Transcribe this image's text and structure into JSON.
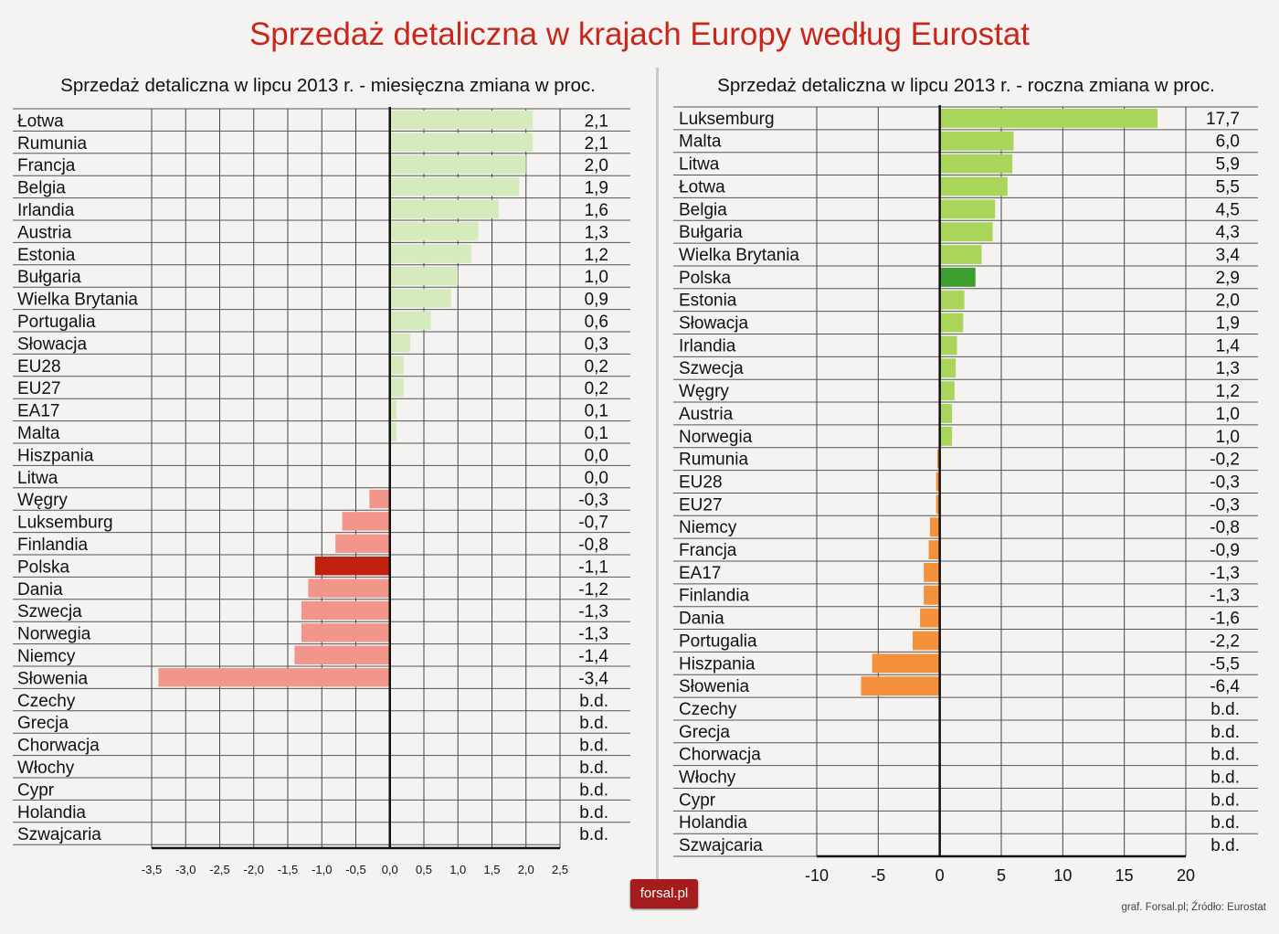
{
  "title": "Sprzedaż detaliczna w krajach Europy według Eurostat",
  "source": "graf. Forsal.pl; Źródło: Eurostat",
  "logo_text": "forsal.pl",
  "colors": {
    "title": "#c8261a",
    "highlight_label": "#e87722",
    "left_positive": "#d6ebbd",
    "left_negative": "#f2958a",
    "left_highlight": "#c1200f",
    "right_positive": "#a8d55a",
    "right_negative": "#f4913c",
    "right_highlight": "#3b9e2e"
  },
  "chart_data": [
    {
      "type": "bar",
      "orientation": "horizontal",
      "title": "Sprzedaż detaliczna w lipcu 2013 r. - miesięczna zmiana w proc.",
      "xlim": [
        -3.5,
        2.5
      ],
      "xticks": [
        "-3,5",
        "-3,0",
        "-2,5",
        "-2,0",
        "-1,5",
        "-1,0",
        "-0,5",
        "0,0",
        "0,5",
        "1,0",
        "1,5",
        "2,0",
        "2,5"
      ],
      "highlight": "Polska",
      "categories": [
        "Łotwa",
        "Rumunia",
        "Francja",
        "Belgia",
        "Irlandia",
        "Austria",
        "Estonia",
        "Bułgaria",
        "Wielka Brytania",
        "Portugalia",
        "Słowacja",
        "EU28",
        "EU27",
        "EA17",
        "Malta",
        "Hiszpania",
        "Litwa",
        "Węgry",
        "Luksemburg",
        "Finlandia",
        "Polska",
        "Dania",
        "Szwecja",
        "Norwegia",
        "Niemcy",
        "Słowenia",
        "Czechy",
        "Grecja",
        "Chorwacja",
        "Włochy",
        "Cypr",
        "Holandia",
        "Szwajcaria"
      ],
      "values": [
        2.1,
        2.1,
        2.0,
        1.9,
        1.6,
        1.3,
        1.2,
        1.0,
        0.9,
        0.6,
        0.3,
        0.2,
        0.2,
        0.1,
        0.1,
        0.0,
        0.0,
        -0.3,
        -0.7,
        -0.8,
        -1.1,
        -1.2,
        -1.3,
        -1.3,
        -1.4,
        -3.4,
        null,
        null,
        null,
        null,
        null,
        null,
        null
      ],
      "labels": [
        "2,1",
        "2,1",
        "2,0",
        "1,9",
        "1,6",
        "1,3",
        "1,2",
        "1,0",
        "0,9",
        "0,6",
        "0,3",
        "0,2",
        "0,2",
        "0,1",
        "0,1",
        "0,0",
        "0,0",
        "-0,3",
        "-0,7",
        "-0,8",
        "-1,1",
        "-1,2",
        "-1,3",
        "-1,3",
        "-1,4",
        "-3,4",
        "b.d.",
        "b.d.",
        "b.d.",
        "b.d.",
        "b.d.",
        "b.d.",
        "b.d."
      ]
    },
    {
      "type": "bar",
      "orientation": "horizontal",
      "title": "Sprzedaż detaliczna w lipcu 2013 r. - roczna zmiana w proc.",
      "xlim": [
        -10,
        20
      ],
      "xticks": [
        "-10",
        "-5",
        "0",
        "5",
        "10",
        "15",
        "20"
      ],
      "highlight": "Polska",
      "categories": [
        "Luksemburg",
        "Malta",
        "Litwa",
        "Łotwa",
        "Belgia",
        "Bułgaria",
        "Wielka Brytania",
        "Polska",
        "Estonia",
        "Słowacja",
        "Irlandia",
        "Szwecja",
        "Węgry",
        "Austria",
        "Norwegia",
        "Rumunia",
        "EU28",
        "EU27",
        "Niemcy",
        "Francja",
        "EA17",
        "Finlandia",
        "Dania",
        "Portugalia",
        "Hiszpania",
        "Słowenia",
        "Czechy",
        "Grecja",
        "Chorwacja",
        "Włochy",
        "Cypr",
        "Holandia",
        "Szwajcaria"
      ],
      "values": [
        17.7,
        6.0,
        5.9,
        5.5,
        4.5,
        4.3,
        3.4,
        2.9,
        2.0,
        1.9,
        1.4,
        1.3,
        1.2,
        1.0,
        1.0,
        -0.2,
        -0.3,
        -0.3,
        -0.8,
        -0.9,
        -1.3,
        -1.3,
        -1.6,
        -2.2,
        -5.5,
        -6.4,
        null,
        null,
        null,
        null,
        null,
        null,
        null
      ],
      "labels": [
        "17,7",
        "6,0",
        "5,9",
        "5,5",
        "4,5",
        "4,3",
        "3,4",
        "2,9",
        "2,0",
        "1,9",
        "1,4",
        "1,3",
        "1,2",
        "1,0",
        "1,0",
        "-0,2",
        "-0,3",
        "-0,3",
        "-0,8",
        "-0,9",
        "-1,3",
        "-1,3",
        "-1,6",
        "-2,2",
        "-5,5",
        "-6,4",
        "b.d.",
        "b.d.",
        "b.d.",
        "b.d.",
        "b.d.",
        "b.d.",
        "b.d."
      ]
    }
  ]
}
